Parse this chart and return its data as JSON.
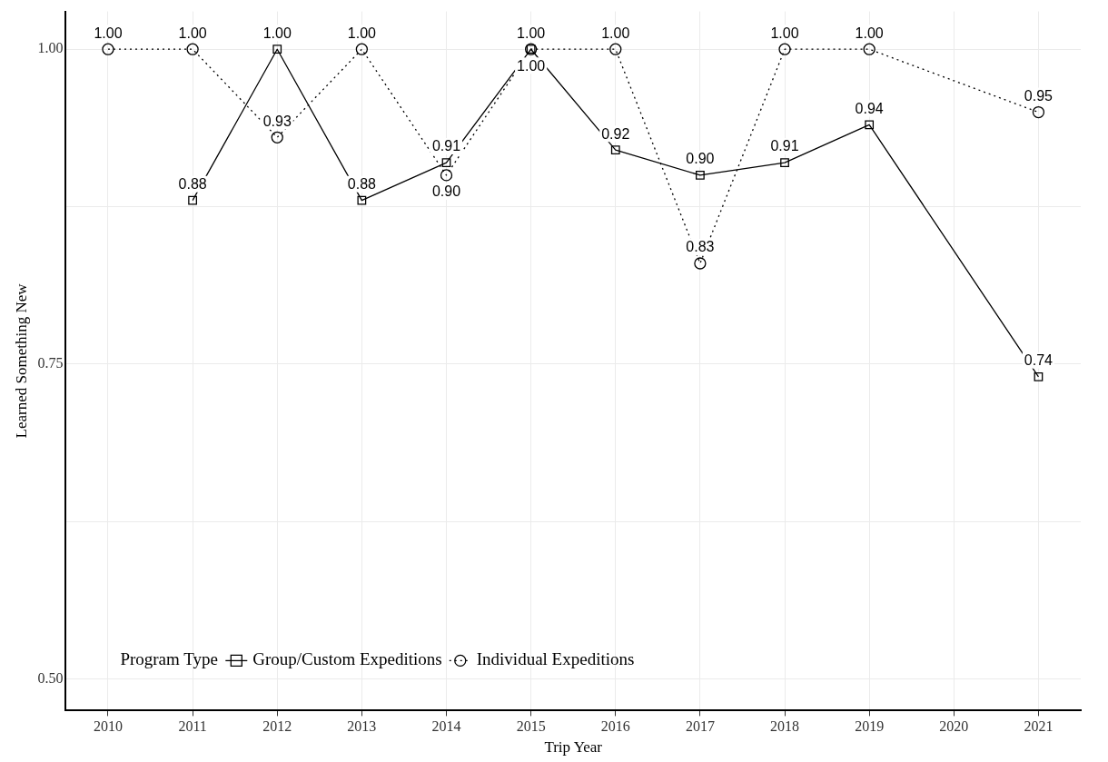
{
  "chart_data": {
    "type": "line",
    "xlabel": "Trip Year",
    "ylabel": "Learned Something New",
    "legend_title": "Program Type",
    "legend": "bottom left",
    "grid": true,
    "xlim": [
      2009.5,
      2021.5
    ],
    "xticks": [
      2010,
      2011,
      2012,
      2013,
      2014,
      2015,
      2016,
      2017,
      2018,
      2019,
      2020,
      2021
    ],
    "ylim": [
      0.475,
      1.03
    ],
    "yticks": [
      {
        "value": 0.5,
        "label": "0.50"
      },
      {
        "value": 0.625,
        "label": null
      },
      {
        "value": 0.75,
        "label": "0.75"
      },
      {
        "value": 0.875,
        "label": null
      },
      {
        "value": 1,
        "label": "1.00"
      }
    ],
    "series": [
      {
        "name": "Group/Custom Expeditions",
        "color": "#000000",
        "marker": "square",
        "line_style": "solid",
        "x": [
          2011,
          2012,
          2013,
          2014,
          2015,
          2016,
          2017,
          2018,
          2019,
          2021
        ],
        "values": [
          0.88,
          1.0,
          0.88,
          0.91,
          1.0,
          0.92,
          0.9,
          0.91,
          0.94,
          0.74
        ],
        "value_labels": [
          "0.88",
          "1.00",
          "0.88",
          "0.91",
          "1.00",
          "0.92",
          "0.90",
          "0.91",
          "0.94",
          "0.74"
        ]
      },
      {
        "name": "Individual Expeditions",
        "color": "#000000",
        "marker": "circle",
        "line_style": "dotted",
        "x": [
          2010,
          2011,
          2012,
          2013,
          2014,
          2015,
          2016,
          2017,
          2018,
          2019,
          2021
        ],
        "values": [
          1.0,
          1.0,
          0.93,
          1.0,
          0.9,
          1.0,
          1.0,
          0.83,
          1.0,
          1.0,
          0.95
        ],
        "value_labels": [
          "1.00",
          "1.00",
          "0.93",
          "1.00",
          "0.90",
          "1.00",
          "1.00",
          "0.83",
          "1.00",
          "1.00",
          "0.95"
        ]
      }
    ]
  }
}
